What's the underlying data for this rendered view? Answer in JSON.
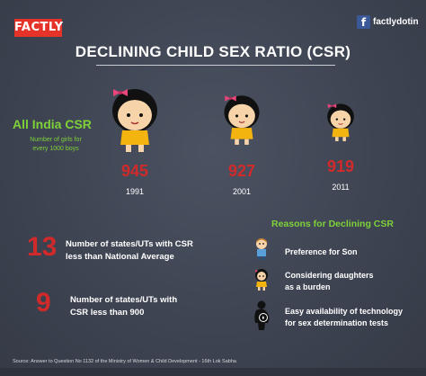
{
  "brand": {
    "logo": "FACTLY",
    "fb_icon": "f",
    "fb_handle": "factlydotin"
  },
  "title": "DECLINING CHILD SEX RATIO (CSR)",
  "csr": {
    "heading": "All India CSR",
    "subtitle": "Number of girls for every 1000 boys",
    "entries": [
      {
        "value": "945",
        "year": "1991"
      },
      {
        "value": "927",
        "year": "2001"
      },
      {
        "value": "919",
        "year": "2011"
      }
    ]
  },
  "stats": [
    {
      "number": "13",
      "text_line1": "Number of states/UTs with CSR",
      "text_line2": "less than National Average"
    },
    {
      "number": "9",
      "text_line1": "Number of states/UTs with",
      "text_line2": "CSR less than 900"
    }
  ],
  "reasons": {
    "heading": "Reasons for Declining CSR",
    "items": [
      {
        "line1": "Preference for Son",
        "line2": "",
        "icon": "boy-icon"
      },
      {
        "line1": "Considering daughters",
        "line2": "as a burden",
        "icon": "girl-icon"
      },
      {
        "line1": "Easy availability of technology",
        "line2": "for sex determination tests",
        "icon": "pregnant-woman-icon"
      }
    ]
  },
  "source": "Source: Answer to Question No 1132 of the Ministry of Women & Child Development - 16th Lok Sabha",
  "colors": {
    "accent_green": "#7fd13a",
    "accent_red": "#d12a2a",
    "background": "#3e4452"
  }
}
